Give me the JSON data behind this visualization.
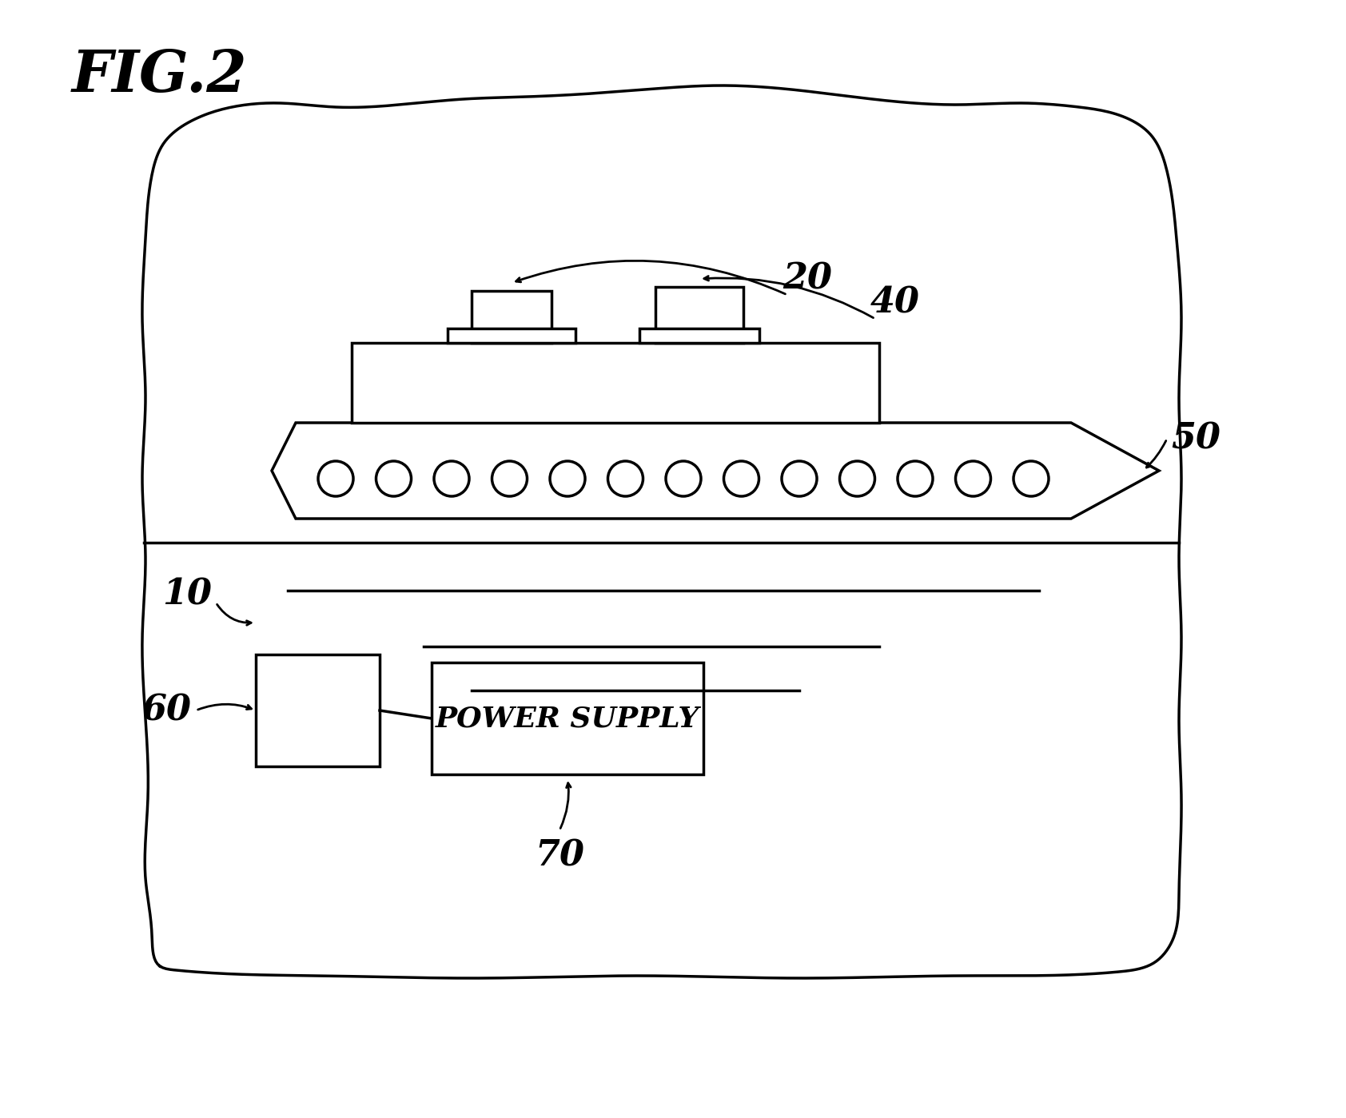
{
  "title": "FIG.2",
  "background_color": "#ffffff",
  "line_color": "#000000",
  "label_20": "20",
  "label_40": "40",
  "label_50": "50",
  "label_10": "10",
  "label_60": "60",
  "label_70": "70",
  "power_supply_text": "POWER SUPPLY",
  "fig_width": 16.84,
  "fig_height": 13.99
}
